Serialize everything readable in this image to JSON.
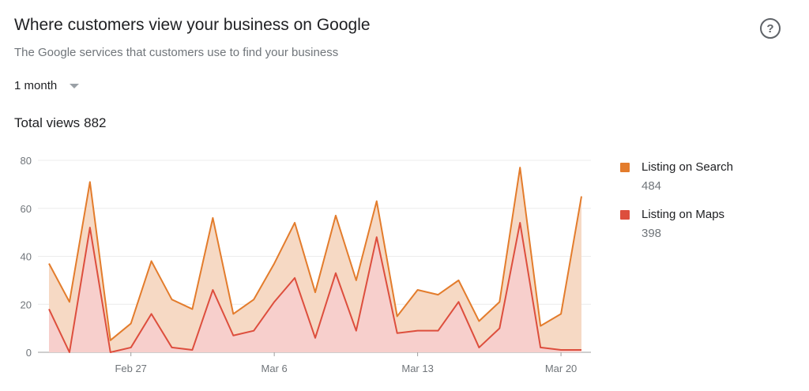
{
  "header": {
    "title": "Where customers view your business on Google",
    "subtitle": "The Google services that customers use to find your business",
    "help_icon": "help-circle-icon"
  },
  "period": {
    "label": "1 month",
    "icon": "dropdown-arrow-icon"
  },
  "summary": {
    "label": "Total views",
    "value": "882"
  },
  "colors": {
    "search_line": "#e37c2c",
    "search_fill": "#f6d9c4",
    "maps_line": "#dd4e3d",
    "maps_fill": "#f7cfcc",
    "grid": "#ececec",
    "axis_text": "#70757a"
  },
  "legend": [
    {
      "name": "Listing on Search",
      "value": "484",
      "color": "#e37c2c"
    },
    {
      "name": "Listing on Maps",
      "value": "398",
      "color": "#dd4e3d"
    }
  ],
  "chart_data": {
    "type": "area",
    "stacked": true,
    "ylim": [
      0,
      80
    ],
    "y_ticks": [
      0,
      20,
      40,
      60,
      80
    ],
    "x_tick_labels": [
      {
        "label": "Feb 27",
        "index": 4
      },
      {
        "label": "Mar 6",
        "index": 11
      },
      {
        "label": "Mar 13",
        "index": 18
      },
      {
        "label": "Mar 20",
        "index": 25
      }
    ],
    "grid": true,
    "legend_position": "right",
    "series": [
      {
        "name": "Listing on Maps",
        "color": "#dd4e3d",
        "values": [
          18,
          0,
          52,
          0,
          2,
          16,
          2,
          1,
          26,
          7,
          9,
          21,
          31,
          6,
          33,
          9,
          48,
          8,
          9,
          9,
          21,
          2,
          10,
          54,
          2,
          1,
          1
        ]
      },
      {
        "name": "Listing on Search",
        "color": "#e37c2c",
        "values": [
          19,
          21,
          19,
          5,
          10,
          22,
          20,
          17,
          30,
          9,
          13,
          16,
          23,
          19,
          24,
          21,
          15,
          7,
          17,
          15,
          9,
          11,
          11,
          23,
          9,
          15,
          64
        ]
      }
    ]
  }
}
